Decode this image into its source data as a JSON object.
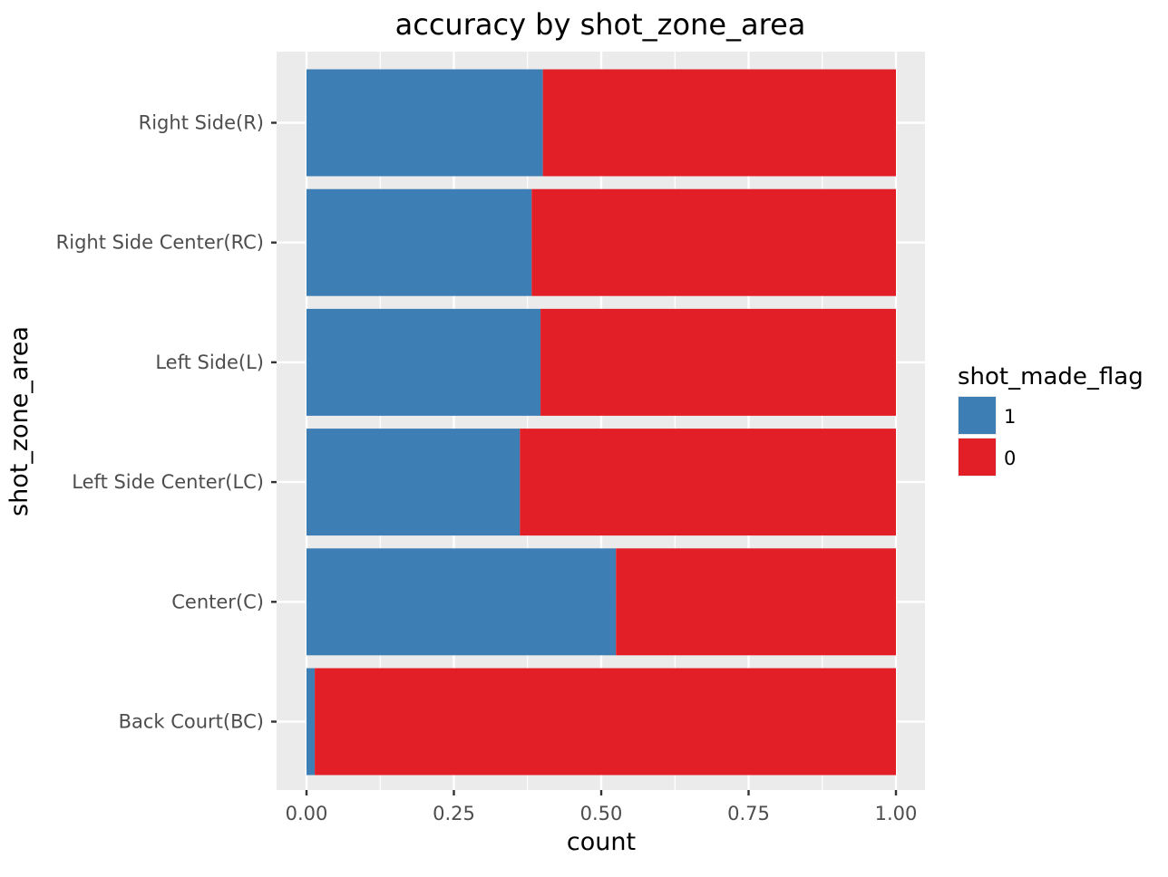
{
  "chart_data": {
    "type": "bar",
    "orientation": "horizontal",
    "stacked": true,
    "title": "accuracy by shot_zone_area",
    "xlabel": "count",
    "ylabel": "shot_zone_area",
    "xlim": [
      0,
      1
    ],
    "x_ticks": [
      "0.00",
      "0.25",
      "0.50",
      "0.75",
      "1.00"
    ],
    "x_tick_values": [
      0,
      0.25,
      0.5,
      0.75,
      1
    ],
    "categories": [
      "Right Side(R)",
      "Right Side Center(RC)",
      "Left Side(L)",
      "Left Side Center(LC)",
      "Center(C)",
      "Back Court(BC)"
    ],
    "series": [
      {
        "name": "1",
        "color": "#3d7eb5",
        "values": [
          0.401,
          0.382,
          0.397,
          0.362,
          0.525,
          0.014
        ]
      },
      {
        "name": "0",
        "color": "#e21f27",
        "values": [
          0.599,
          0.618,
          0.603,
          0.638,
          0.475,
          0.986
        ]
      }
    ],
    "legend": {
      "title": "shot_made_flag",
      "position": "right"
    },
    "grid": true,
    "panel_background": "#ebebeb"
  }
}
